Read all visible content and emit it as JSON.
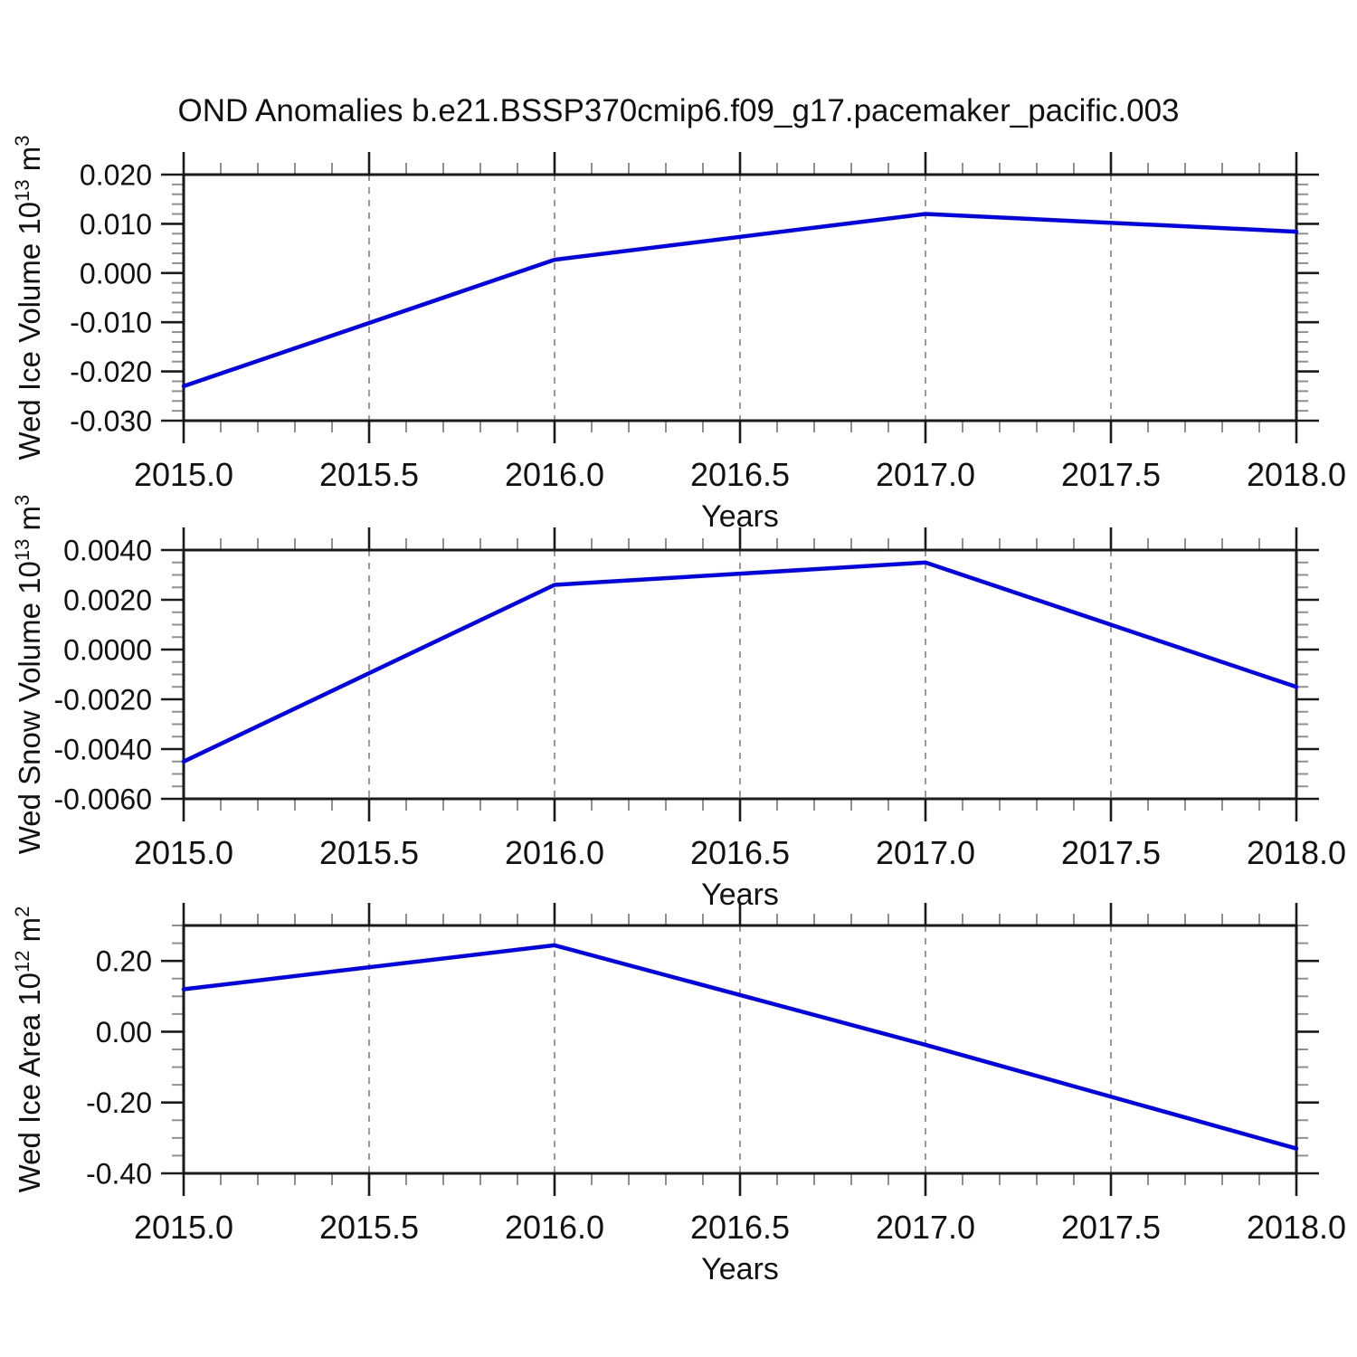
{
  "title": "OND Anomalies b.e21.BSSP370cmip6.f09_g17.pacemaker_pacific.003",
  "colors": {
    "line": "#0000ee",
    "frame": "#1a1a1a",
    "major_tick": "#1a1a1a",
    "minor_tick": "#909090",
    "grid": "#999999",
    "text": "#111111"
  },
  "chart_data": [
    {
      "type": "line",
      "x": [
        2015.0,
        2016.0,
        2017.0,
        2018.0
      ],
      "series": [
        {
          "name": "Wed Ice Volume anomaly",
          "values": [
            -0.023,
            0.0027,
            0.012,
            0.0084
          ]
        }
      ],
      "title": "",
      "xlabel": "Years",
      "ylabel": "Wed Ice Volume 10^13 m^3",
      "ylabel_parts": [
        {
          "t": "Wed Ice Volume 10"
        },
        {
          "t": "13",
          "sup": true
        },
        {
          "t": " m"
        },
        {
          "t": "3",
          "sup": true
        }
      ],
      "xlim": [
        2015.0,
        2018.0
      ],
      "ylim": [
        -0.03,
        0.02
      ],
      "y_tick_labels": [
        "0.020",
        "0.010",
        "0.000",
        "-0.010",
        "-0.020",
        "-0.030"
      ],
      "y_tick_values": [
        0.02,
        0.01,
        0.0,
        -0.01,
        -0.02,
        -0.03
      ],
      "y_minor_step": 0.002,
      "x_tick_labels": [
        "2015.0",
        "2015.5",
        "2016.0",
        "2016.5",
        "2017.0",
        "2017.5",
        "2018.0"
      ],
      "x_tick_values": [
        2015.0,
        2015.5,
        2016.0,
        2016.5,
        2017.0,
        2017.5,
        2018.0
      ],
      "x_minor_step": 0.1,
      "grid_x_values": [
        2015.5,
        2016.0,
        2016.5,
        2017.0,
        2017.5
      ],
      "grid": "vertical-dashed",
      "legend": "none"
    },
    {
      "type": "line",
      "x": [
        2015.0,
        2016.0,
        2017.0,
        2018.0
      ],
      "series": [
        {
          "name": "Wed Snow Volume anomaly",
          "values": [
            -0.0045,
            0.0026,
            0.0035,
            -0.0015
          ]
        }
      ],
      "title": "",
      "xlabel": "Years",
      "ylabel": "Wed Snow Volume 10^13 m^3",
      "ylabel_parts": [
        {
          "t": "Wed Snow Volume 10"
        },
        {
          "t": "13",
          "sup": true
        },
        {
          "t": " m"
        },
        {
          "t": "3",
          "sup": true
        }
      ],
      "xlim": [
        2015.0,
        2018.0
      ],
      "ylim": [
        -0.006,
        0.004
      ],
      "y_tick_labels": [
        "0.0040",
        "0.0020",
        "0.0000",
        "-0.0020",
        "-0.0040",
        "-0.0060"
      ],
      "y_tick_values": [
        0.004,
        0.002,
        0.0,
        -0.002,
        -0.004,
        -0.006
      ],
      "y_minor_step": 0.0005,
      "x_tick_labels": [
        "2015.0",
        "2015.5",
        "2016.0",
        "2016.5",
        "2017.0",
        "2017.5",
        "2018.0"
      ],
      "x_tick_values": [
        2015.0,
        2015.5,
        2016.0,
        2016.5,
        2017.0,
        2017.5,
        2018.0
      ],
      "x_minor_step": 0.1,
      "grid_x_values": [
        2015.5,
        2016.0,
        2016.5,
        2017.0,
        2017.5
      ],
      "grid": "vertical-dashed",
      "legend": "none"
    },
    {
      "type": "line",
      "x": [
        2015.0,
        2016.0,
        2017.0,
        2018.0
      ],
      "series": [
        {
          "name": "Wed Ice Area anomaly",
          "values": [
            0.12,
            0.244,
            -0.037,
            -0.33
          ]
        }
      ],
      "title": "",
      "xlabel": "Years",
      "ylabel": "Wed Ice Area 10^12 m^2",
      "ylabel_parts": [
        {
          "t": "Wed Ice Area 10"
        },
        {
          "t": "12",
          "sup": true
        },
        {
          "t": " m"
        },
        {
          "t": "2",
          "sup": true
        }
      ],
      "xlim": [
        2015.0,
        2018.0
      ],
      "ylim": [
        -0.4,
        0.3
      ],
      "y_tick_labels": [
        "0.20",
        "0.00",
        "-0.20",
        "-0.40"
      ],
      "y_tick_values": [
        0.2,
        0.0,
        -0.2,
        -0.4
      ],
      "y_minor_step": 0.05,
      "x_tick_labels": [
        "2015.0",
        "2015.5",
        "2016.0",
        "2016.5",
        "2017.0",
        "2017.5",
        "2018.0"
      ],
      "x_tick_values": [
        2015.0,
        2015.5,
        2016.0,
        2016.5,
        2017.0,
        2017.5,
        2018.0
      ],
      "x_minor_step": 0.1,
      "grid_x_values": [
        2015.5,
        2016.0,
        2016.5,
        2017.0,
        2017.5
      ],
      "grid": "vertical-dashed",
      "legend": "none"
    }
  ]
}
